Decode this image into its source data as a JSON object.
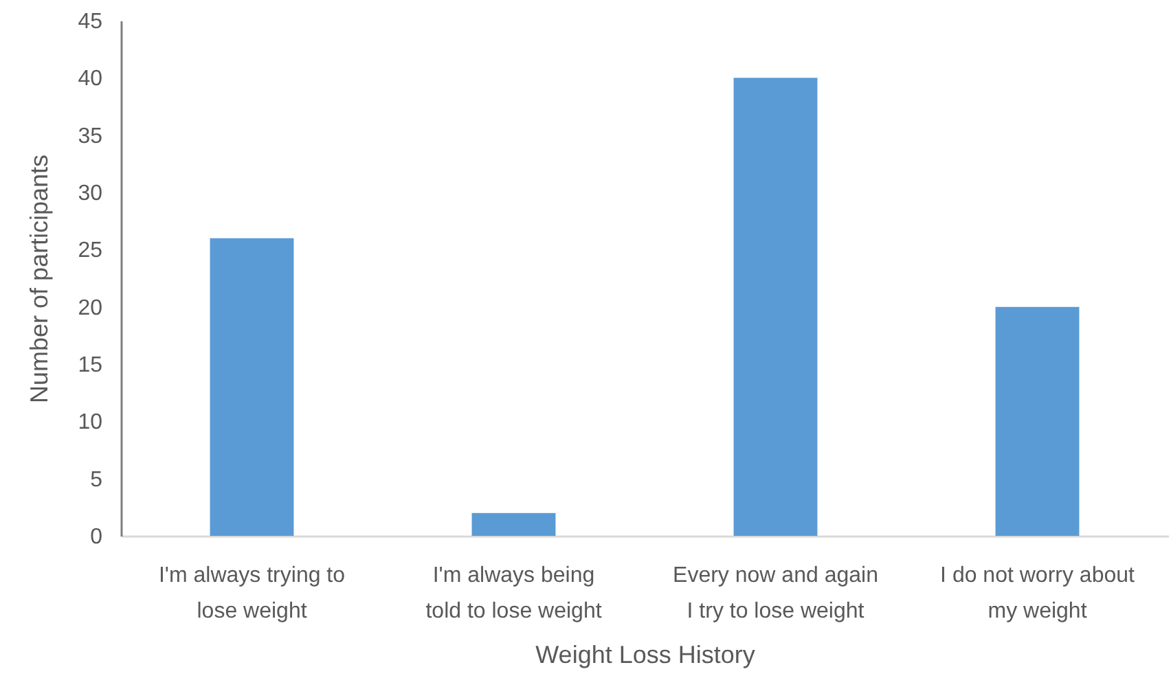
{
  "chart_data": {
    "type": "bar",
    "xlabel": "Weight Loss History",
    "ylabel": "Number of participants",
    "categories": [
      "I'm always trying to lose weight",
      "I'm always being told to lose weight",
      "Every now and again I try to lose weight",
      "I do not worry about my weight"
    ],
    "values": [
      26,
      2,
      40,
      20
    ],
    "color": "#5b9bd5",
    "ylim": [
      0,
      45
    ],
    "yticks": [
      0,
      5,
      10,
      15,
      20,
      25,
      30,
      35,
      40,
      45
    ],
    "grid": false
  }
}
